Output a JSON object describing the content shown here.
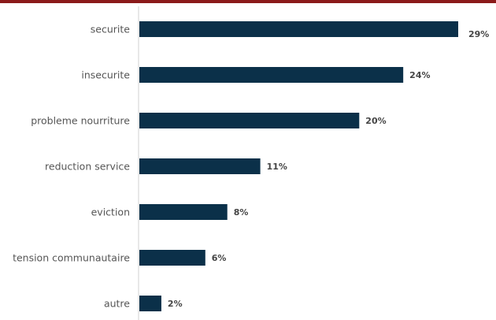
{
  "colors": {
    "top_rule": "#8b1a1a",
    "bar": "#0b3049",
    "axis": "#d0d0d0"
  },
  "chart_data": {
    "type": "bar",
    "orientation": "horizontal",
    "categories": [
      "securite",
      "insecurite",
      "probleme nourriture",
      "reduction service",
      "eviction",
      "tension communautaire",
      "autre"
    ],
    "values": [
      29,
      24,
      20,
      11,
      8,
      6,
      2
    ],
    "value_labels": [
      "29%",
      "24%",
      "20%",
      "11%",
      "8%",
      "6%",
      "2%"
    ],
    "unit": "%",
    "xlim": [
      0,
      29
    ],
    "grid": false,
    "legend": "none"
  }
}
